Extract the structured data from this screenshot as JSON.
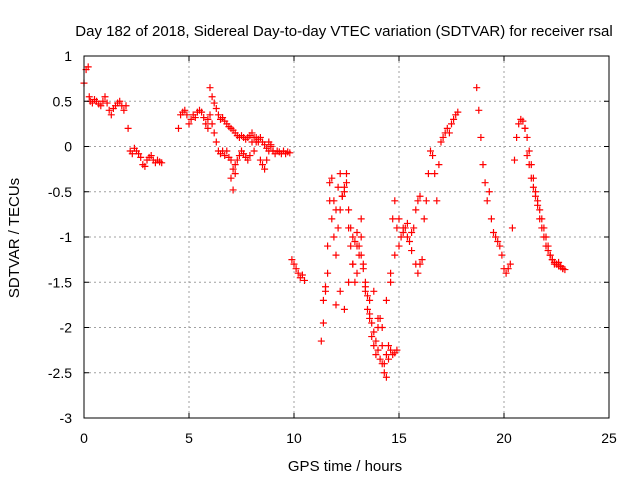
{
  "chart_data": {
    "type": "scatter",
    "title": "Day 182 of 2018, Sidereal Day-to-day VTEC variation (SDTVAR) for receiver rsal",
    "xlabel": "GPS time / hours",
    "ylabel": "SDTVAR / TECUs",
    "xlim": [
      0,
      25
    ],
    "ylim": [
      -3,
      1
    ],
    "xticks": [
      0,
      5,
      10,
      15,
      20,
      25
    ],
    "xtick_labels": [
      "0",
      "5",
      "10",
      "15",
      "20",
      "25"
    ],
    "yticks": [
      1,
      0.5,
      0,
      -0.5,
      -1,
      -1.5,
      -2,
      -2.5,
      -3
    ],
    "ytick_labels": [
      "1",
      "0.5",
      "0",
      "-0.5",
      "-1",
      "-1.5",
      "-2",
      "-2.5",
      "-3"
    ],
    "grid": true,
    "marker": "plus",
    "color": "#ff0000",
    "series": [
      {
        "name": "SDTVAR",
        "x": [
          0.0,
          0.1,
          0.2,
          0.25,
          0.3,
          0.4,
          0.5,
          0.6,
          0.7,
          0.8,
          0.9,
          1.0,
          1.1,
          1.2,
          1.3,
          1.4,
          1.5,
          1.6,
          1.7,
          1.8,
          1.9,
          2.0,
          2.1,
          2.2,
          2.3,
          2.4,
          2.5,
          2.6,
          2.7,
          2.8,
          2.9,
          3.0,
          3.1,
          3.2,
          3.3,
          3.4,
          3.5,
          3.6,
          3.7,
          4.5,
          4.6,
          4.7,
          4.8,
          4.9,
          5.0,
          5.1,
          5.2,
          5.3,
          5.4,
          5.5,
          5.6,
          5.7,
          5.8,
          5.9,
          6.0,
          6.1,
          6.2,
          6.3,
          6.4,
          6.5,
          6.6,
          6.7,
          6.8,
          6.9,
          7.0,
          7.1,
          7.2,
          7.3,
          7.4,
          7.5,
          7.6,
          7.7,
          7.8,
          7.9,
          8.0,
          8.1,
          8.2,
          8.3,
          8.4,
          8.5,
          8.6,
          8.7,
          8.8,
          8.9,
          9.0,
          9.1,
          9.2,
          9.3,
          9.4,
          9.5,
          9.6,
          9.7,
          9.8,
          5.9,
          6.0,
          6.1,
          6.2,
          6.3,
          6.4,
          6.5,
          6.6,
          6.7,
          6.8,
          6.9,
          7.0,
          7.1,
          7.2,
          7.3,
          7.4,
          7.5,
          7.6,
          7.7,
          7.8,
          7.9,
          8.0,
          8.1,
          8.2,
          8.3,
          8.4,
          8.5,
          8.6,
          8.7,
          8.8,
          8.9,
          9.0,
          7.0,
          7.1,
          7.2,
          9.9,
          10.0,
          10.1,
          10.2,
          10.3,
          10.4,
          10.5,
          11.3,
          11.4,
          11.5,
          11.6,
          11.7,
          11.8,
          11.9,
          12.0,
          12.1,
          12.2,
          12.3,
          12.4,
          12.5,
          12.6,
          12.7,
          12.8,
          12.9,
          13.0,
          13.1,
          13.2,
          13.3,
          13.4,
          13.5,
          13.6,
          13.7,
          13.8,
          13.9,
          14.0,
          14.1,
          14.2,
          14.3,
          14.4,
          14.5,
          14.6,
          14.7,
          14.8,
          14.9,
          15.0,
          15.1,
          15.2,
          15.3,
          15.4,
          15.5,
          15.6,
          15.7,
          15.8,
          15.9,
          16.0,
          11.4,
          11.5,
          11.6,
          11.7,
          11.8,
          11.9,
          12.0,
          12.1,
          12.2,
          12.3,
          12.4,
          12.5,
          12.6,
          12.7,
          12.8,
          12.9,
          13.0,
          13.1,
          13.2,
          13.3,
          13.4,
          13.5,
          13.6,
          13.7,
          13.8,
          13.9,
          14.0,
          14.1,
          14.2,
          14.3,
          14.4,
          14.5,
          14.6,
          14.7,
          14.8,
          14.9,
          12.0,
          12.2,
          12.4,
          12.6,
          12.8,
          13.0,
          13.2,
          13.4,
          13.6,
          13.8,
          14.0,
          14.2,
          14.4,
          14.6,
          14.8,
          15.0,
          15.2,
          15.4,
          15.6,
          15.8,
          15.9,
          16.0,
          16.1,
          16.2,
          16.3,
          16.4,
          16.5,
          16.6,
          16.7,
          16.8,
          16.9,
          17.0,
          17.1,
          17.2,
          17.3,
          17.4,
          17.5,
          17.6,
          17.7,
          17.8,
          18.7,
          18.8,
          18.9,
          19.0,
          19.1,
          19.2,
          19.3,
          19.4,
          19.5,
          19.6,
          19.7,
          19.8,
          19.9,
          20.0,
          20.1,
          20.2,
          20.3,
          20.4,
          20.5,
          20.6,
          20.7,
          20.8,
          20.9,
          21.0,
          21.1,
          21.2,
          21.3,
          21.4,
          21.5,
          21.6,
          21.7,
          21.8,
          21.9,
          22.0,
          22.1,
          22.2,
          22.3,
          22.4,
          22.5,
          22.6,
          22.7,
          22.8,
          22.9,
          21.0,
          21.1,
          21.2,
          21.3,
          21.4,
          21.5,
          21.6,
          21.7,
          21.8,
          21.9,
          22.0,
          22.1,
          22.2,
          22.3,
          22.4,
          22.5,
          22.6,
          22.7,
          22.8
        ],
        "y": [
          0.7,
          0.85,
          0.88,
          0.55,
          0.5,
          0.48,
          0.52,
          0.5,
          0.47,
          0.45,
          0.5,
          0.55,
          0.48,
          0.4,
          0.35,
          0.42,
          0.45,
          0.48,
          0.5,
          0.45,
          0.4,
          0.45,
          0.2,
          -0.05,
          -0.08,
          -0.02,
          -0.05,
          -0.08,
          -0.12,
          -0.2,
          -0.22,
          -0.15,
          -0.12,
          -0.1,
          -0.15,
          -0.18,
          -0.15,
          -0.17,
          -0.18,
          0.2,
          0.35,
          0.38,
          0.4,
          0.35,
          0.25,
          0.3,
          0.35,
          0.32,
          0.38,
          0.4,
          0.38,
          0.32,
          0.25,
          0.2,
          0.65,
          0.55,
          0.48,
          0.42,
          0.35,
          0.3,
          0.32,
          0.28,
          0.25,
          0.22,
          0.2,
          0.18,
          0.15,
          0.12,
          0.1,
          0.12,
          0.1,
          0.08,
          0.1,
          0.12,
          0.15,
          0.1,
          0.05,
          0.08,
          0.1,
          0.05,
          0.02,
          -0.02,
          0.05,
          0.0,
          -0.05,
          -0.08,
          -0.05,
          -0.06,
          -0.08,
          -0.05,
          -0.08,
          -0.06,
          -0.07,
          0.3,
          0.35,
          0.25,
          0.15,
          0.05,
          -0.05,
          -0.08,
          -0.05,
          -0.1,
          -0.05,
          -0.12,
          -0.15,
          -0.25,
          -0.2,
          -0.15,
          -0.1,
          -0.05,
          -0.08,
          -0.12,
          -0.15,
          -0.1,
          0.05,
          -0.05,
          0.1,
          0.05,
          -0.15,
          -0.2,
          -0.25,
          -0.15,
          -0.05,
          0.02,
          -0.05,
          -0.35,
          -0.48,
          -0.3,
          -1.25,
          -1.3,
          -1.35,
          -1.4,
          -1.45,
          -1.42,
          -1.48,
          -2.15,
          -1.95,
          -1.55,
          -1.1,
          -0.4,
          -0.35,
          -0.6,
          -0.7,
          -0.45,
          -0.3,
          -0.55,
          -0.5,
          -0.4,
          -0.7,
          -0.9,
          -1.0,
          -1.05,
          -0.95,
          -1.1,
          -1.2,
          -1.35,
          -1.55,
          -1.65,
          -1.85,
          -1.95,
          -2.05,
          -2.15,
          -2.25,
          -2.35,
          -2.4,
          -2.5,
          -2.55,
          -2.2,
          -1.4,
          -0.8,
          -0.6,
          -0.9,
          -1.1,
          -1.0,
          -0.95,
          -0.9,
          -0.85,
          -1.05,
          -0.95,
          -0.9,
          -0.7,
          -0.6,
          -0.55,
          -1.7,
          -1.6,
          -1.4,
          -0.6,
          -0.8,
          -1.0,
          -1.2,
          -0.9,
          -0.7,
          -0.55,
          -0.45,
          -0.3,
          -0.9,
          -1.1,
          -1.3,
          -1.5,
          -1.4,
          -1.2,
          -1.0,
          -1.3,
          -1.6,
          -1.8,
          -1.9,
          -2.1,
          -2.2,
          -2.3,
          -2.0,
          -1.9,
          -2.2,
          -2.4,
          -2.3,
          -2.35,
          -2.25,
          -2.3,
          -2.28,
          -2.25,
          -1.75,
          -1.6,
          -1.8,
          -1.5,
          -1.3,
          -1.1,
          -0.8,
          -1.5,
          -1.7,
          -1.6,
          -1.9,
          -2.0,
          -1.7,
          -1.5,
          -1.2,
          -0.8,
          -0.9,
          -1.0,
          -1.15,
          -1.3,
          -1.4,
          -1.3,
          -1.25,
          -0.8,
          -0.6,
          -0.3,
          -0.05,
          -0.1,
          -0.3,
          -0.6,
          -0.2,
          0.05,
          0.1,
          0.15,
          0.2,
          0.15,
          0.25,
          0.3,
          0.35,
          0.38,
          0.65,
          0.4,
          0.1,
          -0.2,
          -0.4,
          -0.6,
          -0.5,
          -0.8,
          -0.95,
          -1.0,
          -1.05,
          -1.1,
          -1.2,
          -1.35,
          -1.4,
          -1.35,
          -1.3,
          -0.9,
          -0.15,
          0.1,
          0.25,
          0.3,
          0.28,
          0.2,
          0.1,
          -0.05,
          -0.2,
          -0.35,
          -0.5,
          -0.65,
          -0.8,
          -0.9,
          -1.0,
          -1.1,
          -1.15,
          -1.2,
          -1.25,
          -1.28,
          -1.3,
          -1.32,
          -1.33,
          -1.35,
          -1.36,
          0.2,
          -0.1,
          -0.2,
          -0.35,
          -0.45,
          -0.55,
          -0.6,
          -0.7,
          -0.8,
          -0.9,
          -1.0,
          -1.1,
          -1.2,
          -1.25,
          -1.3,
          -1.3,
          -1.28,
          -1.32,
          -1.35
        ]
      }
    ]
  }
}
